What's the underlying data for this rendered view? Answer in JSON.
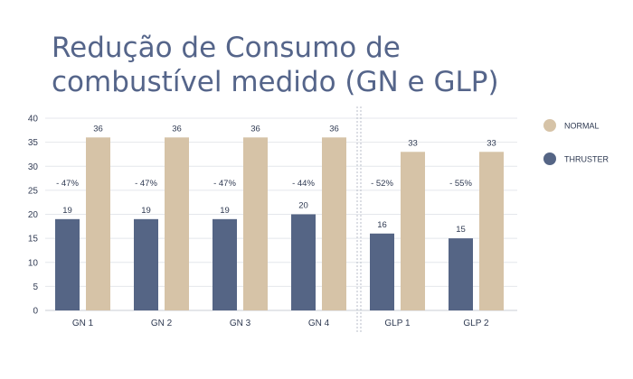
{
  "title_line1": "Redução de Consumo de",
  "title_line2": "combustível medido (GN e GLP)",
  "colors": {
    "normal": "#d6c3a7",
    "thruster": "#556585",
    "title": "#55658a"
  },
  "chart_data": {
    "type": "bar",
    "title": "Redução de Consumo de combustível medido (GN e GLP)",
    "categories": [
      "GN 1",
      "GN 2",
      "GN 3",
      "GN 4",
      "GLP 1",
      "GLP 2"
    ],
    "series": [
      {
        "name": "THRUSTER",
        "values": [
          19,
          19,
          19,
          20,
          16,
          15
        ]
      },
      {
        "name": "NORMAL",
        "values": [
          36,
          36,
          36,
          36,
          33,
          33
        ]
      }
    ],
    "reductions": [
      "- 47%",
      "- 47%",
      "- 47%",
      "- 44%",
      "- 52%",
      "- 55%"
    ],
    "ylim": [
      0,
      40
    ],
    "yticks": [
      0,
      5,
      10,
      15,
      20,
      25,
      30,
      35,
      40
    ],
    "legend": [
      "NORMAL",
      "THRUSTER"
    ],
    "grid": true
  }
}
